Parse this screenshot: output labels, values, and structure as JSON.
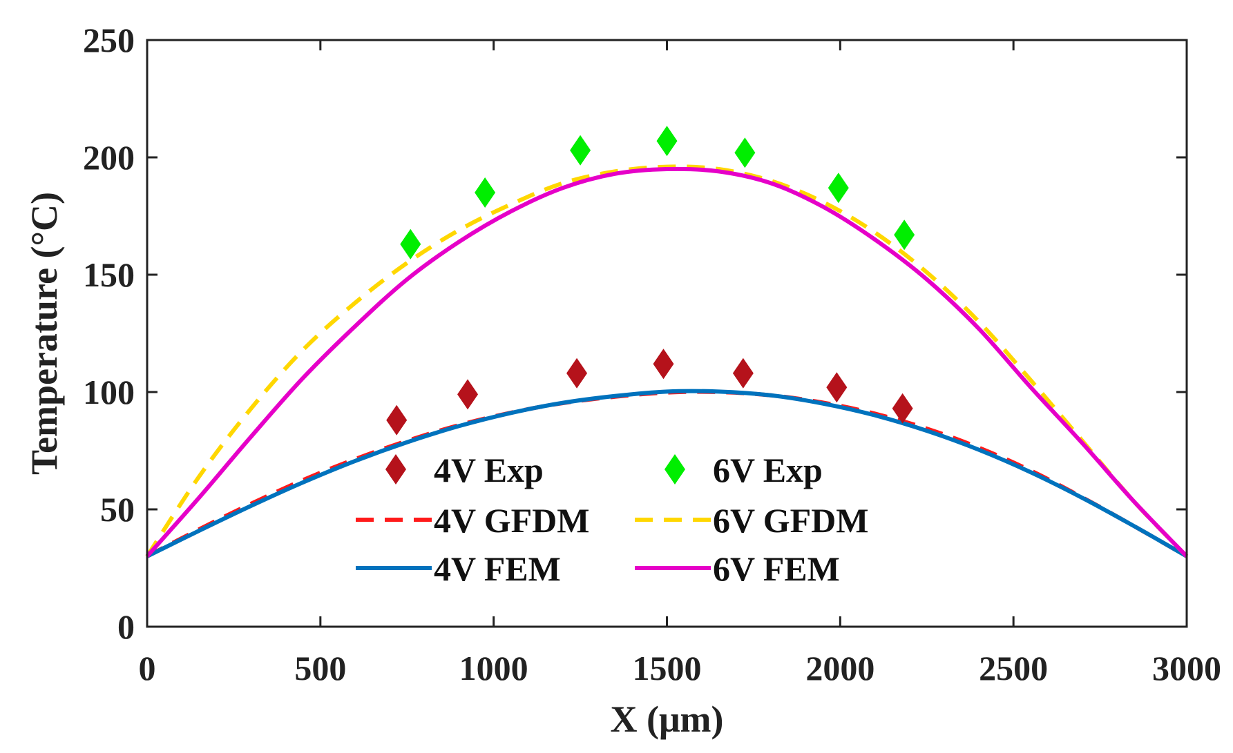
{
  "chart_data": {
    "type": "line",
    "title": "",
    "xlabel": "X (μm)",
    "ylabel": "Temperature (°C)",
    "xlim": [
      0,
      3000
    ],
    "ylim": [
      0,
      250
    ],
    "xticks": [
      0,
      500,
      1000,
      1500,
      2000,
      2500,
      3000
    ],
    "yticks": [
      0,
      50,
      100,
      150,
      200,
      250
    ],
    "grid": false,
    "legend_position": "bottom-center",
    "series": [
      {
        "name": "4V Exp",
        "style": "markers",
        "marker": "diamond",
        "color": "#b5121b",
        "x": [
          720,
          925,
          1240,
          1490,
          1720,
          1990,
          2180
        ],
        "y": [
          88,
          99,
          108,
          112,
          108,
          102,
          93
        ]
      },
      {
        "name": "6V Exp",
        "style": "markers",
        "marker": "diamond",
        "color": "#00ee00",
        "x": [
          760,
          975,
          1250,
          1500,
          1725,
          1995,
          2185
        ],
        "y": [
          163,
          185,
          203,
          207,
          202,
          187,
          167
        ]
      },
      {
        "name": "4V GFDM",
        "style": "dashed",
        "color": "#ff1a1a",
        "x": [
          0,
          150,
          300,
          450,
          600,
          750,
          900,
          1050,
          1200,
          1350,
          1500,
          1650,
          1800,
          1950,
          2100,
          2250,
          2400,
          2550,
          2700,
          2850,
          3000
        ],
        "y": [
          30,
          41.5,
          52.4,
          62.5,
          71.4,
          79.2,
          85.9,
          91.2,
          95.3,
          98.0,
          99.8,
          100.0,
          98.6,
          95.5,
          90.8,
          84.4,
          76.3,
          66.5,
          55.0,
          42.7,
          30
        ]
      },
      {
        "name": "6V GFDM",
        "style": "dashed",
        "color": "#ffd700",
        "x": [
          0,
          150,
          300,
          450,
          600,
          750,
          900,
          1050,
          1200,
          1350,
          1500,
          1650,
          1800,
          1950,
          2100,
          2250,
          2400,
          2550,
          2700,
          2850,
          3000
        ],
        "y": [
          30,
          64,
          93,
          118,
          138,
          155,
          169,
          180,
          189,
          194,
          196,
          195,
          190,
          181,
          168,
          151,
          130,
          105,
          79,
          53,
          30
        ]
      },
      {
        "name": "4V FEM",
        "style": "solid",
        "color": "#0072bd",
        "x": [
          0,
          150,
          300,
          450,
          600,
          750,
          900,
          1050,
          1200,
          1350,
          1500,
          1650,
          1800,
          1950,
          2100,
          2250,
          2400,
          2550,
          2700,
          2850,
          3000
        ],
        "y": [
          30,
          40.9,
          51.5,
          61.5,
          70.6,
          78.6,
          85.5,
          91.1,
          95.4,
          98.3,
          100.2,
          100.2,
          98.6,
          95.1,
          90.1,
          83.5,
          75.4,
          65.8,
          54.8,
          42.7,
          30
        ]
      },
      {
        "name": "6V FEM",
        "style": "solid",
        "color": "#e600c8",
        "x": [
          0,
          150,
          300,
          450,
          600,
          750,
          900,
          1050,
          1200,
          1350,
          1500,
          1650,
          1800,
          1950,
          2100,
          2250,
          2400,
          2550,
          2700,
          2850,
          3000
        ],
        "y": [
          30,
          55,
          81,
          106,
          128,
          148,
          164,
          177,
          187,
          193,
          195,
          194,
          189,
          179,
          165,
          148,
          127,
          102,
          78,
          53,
          30
        ]
      }
    ]
  }
}
